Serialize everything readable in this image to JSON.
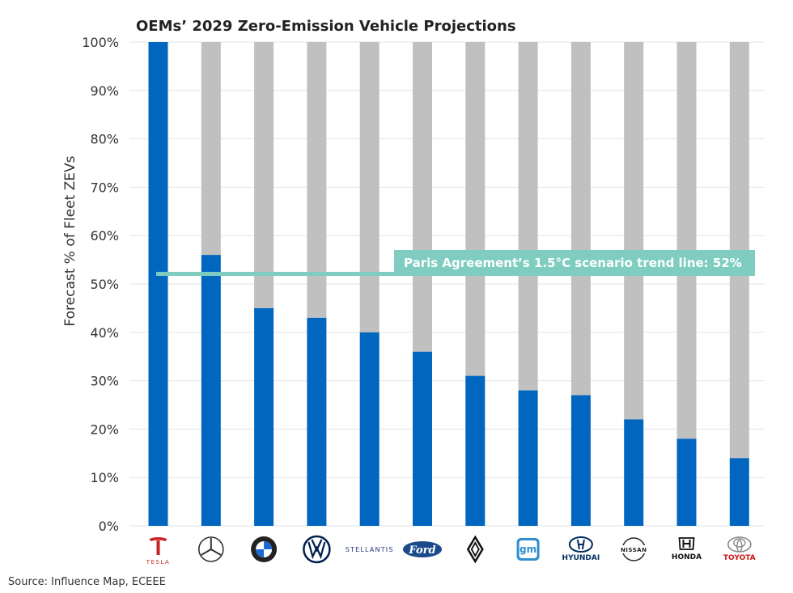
{
  "chart_data": {
    "type": "bar",
    "title": "OEMs’ 2029 Zero-Emission Vehicle Projections",
    "ylabel": "Forecast % of Fleet ZEVs",
    "xlabel": "",
    "ylim": [
      0,
      100
    ],
    "yticks": [
      "0%",
      "10%",
      "20%",
      "30%",
      "40%",
      "50%",
      "60%",
      "70%",
      "80%",
      "90%",
      "100%"
    ],
    "categories": [
      "TESLA",
      "Mercedes-Benz",
      "BMW",
      "Volkswagen",
      "STELLANTIS",
      "Ford",
      "Renault",
      "gm",
      "HYUNDAI",
      "NISSAN",
      "HONDA",
      "TOYOTA"
    ],
    "values": [
      100,
      56,
      45,
      43,
      40,
      36,
      31,
      28,
      27,
      22,
      18,
      14
    ],
    "stacked_remainder_to": 100,
    "reference_line": {
      "value": 52,
      "label": "Paris Agreement’s 1.5°C scenario trend line: 52%"
    },
    "grid": true,
    "colors": {
      "bar": "#0066BF",
      "remainder": "#C0C0C0",
      "reference": "#7ECDC0",
      "grid": "#E3E3E3"
    }
  },
  "logos": [
    {
      "icon": "tesla-logo-icon",
      "text": "TESLA",
      "color": "#CC2222"
    },
    {
      "icon": "mercedes-logo-icon",
      "text": "",
      "color": "#333333"
    },
    {
      "icon": "bmw-logo-icon",
      "text": "",
      "color": "#1C69D4"
    },
    {
      "icon": "vw-logo-icon",
      "text": "",
      "color": "#001E50"
    },
    {
      "icon": "stellantis-logo-icon",
      "text": "STELLANTIS",
      "color": "#243782"
    },
    {
      "icon": "ford-logo-icon",
      "text": "Ford",
      "color": "#1A4A8C"
    },
    {
      "icon": "renault-logo-icon",
      "text": "",
      "color": "#111111"
    },
    {
      "icon": "gm-logo-icon",
      "text": "gm",
      "color": "#2E8FD0"
    },
    {
      "icon": "hyundai-logo-icon",
      "text": "HYUNDAI",
      "color": "#002C5F"
    },
    {
      "icon": "nissan-logo-icon",
      "text": "NISSAN",
      "color": "#222222"
    },
    {
      "icon": "honda-logo-icon",
      "text": "HONDA",
      "color": "#111111"
    },
    {
      "icon": "toyota-logo-icon",
      "text": "TOYOTA",
      "color": "#CC1111"
    }
  ],
  "source": "Source: Influence Map, ECEEE"
}
